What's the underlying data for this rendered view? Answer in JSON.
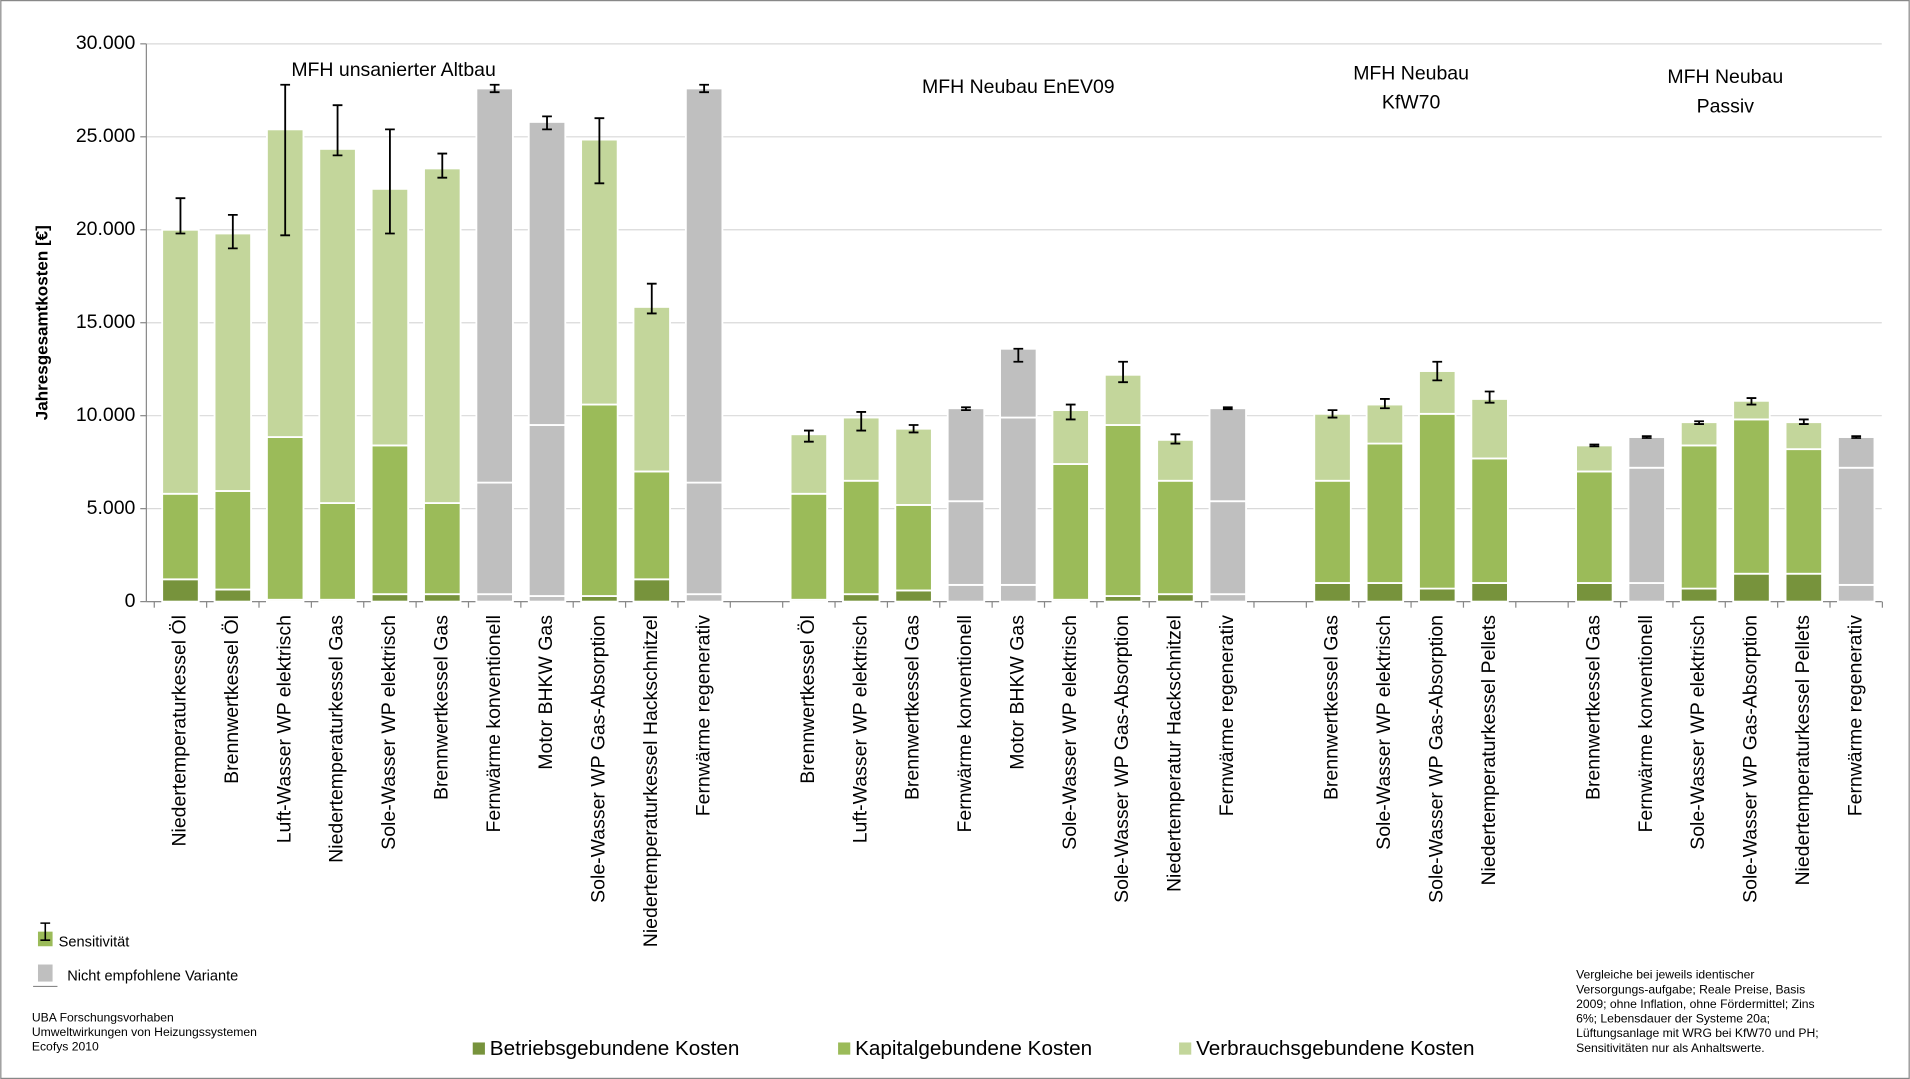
{
  "chart_data": {
    "type": "stacked_bar",
    "ylabel": "Jahresgesamtkosten [€]",
    "ylim": [
      0,
      30000
    ],
    "yticks": [
      0,
      {
        "value": 5000,
        "label": "5.000"
      },
      {
        "value": 10000,
        "label": "10.000"
      },
      {
        "value": 15000,
        "label": "15.000"
      },
      {
        "value": 20000,
        "label": "20.000"
      },
      {
        "value": 25000,
        "label": "25.000"
      },
      {
        "value": 30000,
        "label": "30.000"
      }
    ],
    "grid": true,
    "groups": [
      {
        "label": [
          "MFH unsanierter Altbau"
        ],
        "categories": [
          "Niedertemperaturkessel Öl",
          "Brennwertkessel Öl",
          "Luft-Wasser WP elektrisch",
          "Niedertemperaturkessel Gas",
          "Sole-Wasser WP elektrisch",
          "Brennwertkessel Gas",
          "Fernwärme konventionell",
          "Motor BHKW Gas",
          "Sole-Wasser WP Gas-Absorption",
          "Niedertemperaturkessel Hackschnitzel",
          "Fernwärme regenerativ"
        ]
      },
      {
        "label": [
          "MFH Neubau EnEV09"
        ],
        "categories": [
          "Brennwertkessel Öl",
          "Luft-Wasser WP elektrisch",
          "Brennwertkessel Gas",
          "Fernwärme konventionell",
          "Motor BHKW Gas",
          "Sole-Wasser WP elektrisch",
          "Sole-Wasser WP Gas-Absorption",
          "Niedertemperatur Hackschnitzel",
          "Fernwärme regenerativ"
        ]
      },
      {
        "label": [
          "MFH Neubau",
          "KfW70"
        ],
        "categories": [
          "Brennwertkessel Gas",
          "Sole-Wasser WP elektrisch",
          "Sole-Wasser WP Gas-Absorption",
          "Niedertemperaturkessel Pellets"
        ]
      },
      {
        "label": [
          "MFH Neubau",
          "Passiv"
        ],
        "categories": [
          "Brennwertkessel Gas",
          "Fernwärme konventionell",
          "Sole-Wasser WP elektrisch",
          "Sole-Wasser WP Gas-Absorption",
          "Niedertemperaturkessel Pellets",
          "Fernwärme regenerativ"
        ]
      }
    ],
    "series": [
      {
        "name": "Betriebsgebundene Kosten",
        "color": "#77933c",
        "values": [
          1200,
          650,
          100,
          100,
          400,
          400,
          400,
          300,
          300,
          1200,
          400,
          100,
          400,
          600,
          900,
          900,
          100,
          300,
          400,
          400,
          1000,
          1000,
          700,
          1000,
          1000,
          1000,
          700,
          1500,
          1500,
          900
        ]
      },
      {
        "name": "Kapitalgebundene Kosten",
        "color": "#9bbb59",
        "values": [
          4600,
          5300,
          8750,
          5200,
          8000,
          4900,
          6000,
          9200,
          10300,
          5800,
          6000,
          5700,
          6100,
          4600,
          4500,
          9000,
          7300,
          9200,
          6100,
          5000,
          5500,
          7500,
          9400,
          6700,
          6000,
          6200,
          7700,
          8300,
          6700,
          6300
        ]
      },
      {
        "name": "Verbrauchsgebundene Kosten",
        "color": "#c3d69b",
        "values": [
          14200,
          13850,
          16550,
          19050,
          13800,
          18000,
          21200,
          16300,
          14250,
          8850,
          21200,
          3200,
          3400,
          4100,
          5000,
          3700,
          2900,
          2700,
          2200,
          5000,
          3600,
          2100,
          2300,
          3200,
          1400,
          1650,
          1250,
          1000,
          1450,
          1650
        ]
      }
    ],
    "sensitivity": {
      "name": "Sensitivität",
      "low": [
        19800,
        19000,
        19700,
        24000,
        19800,
        22800,
        27400,
        25400,
        22500,
        15500,
        27400,
        8600,
        9200,
        9100,
        10300,
        12900,
        9800,
        11800,
        8500,
        10350,
        9900,
        10400,
        11900,
        10700,
        8350,
        8800,
        9550,
        10600,
        9550,
        8800
      ],
      "high": [
        21700,
        20800,
        27800,
        26700,
        25400,
        24100,
        27800,
        26100,
        26000,
        17100,
        27800,
        9200,
        10200,
        9500,
        10450,
        13600,
        10600,
        12900,
        9000,
        10450,
        10300,
        10900,
        12900,
        11300,
        8450,
        8900,
        9700,
        10950,
        9800,
        8900
      ]
    },
    "not_recommended": {
      "name": "Nicht empfohlene Variante",
      "color": "#bfbfbf",
      "flags": [
        false,
        false,
        false,
        false,
        false,
        false,
        true,
        true,
        false,
        false,
        true,
        false,
        false,
        false,
        true,
        true,
        false,
        false,
        false,
        true,
        false,
        false,
        false,
        false,
        false,
        true,
        false,
        false,
        false,
        true
      ]
    },
    "source_note": [
      "UBA Forschungsvorhaben",
      "Umweltwirkungen von Heizungssystemen",
      "Ecofys 2010"
    ],
    "method_note": [
      "Vergleiche bei jeweils identischer",
      "Versorgungs-aufgabe; Reale Preise, Basis",
      "2009; ohne Inflation, ohne Fördermittel; Zins",
      "6%; Lebensdauer der Systeme 20a;",
      "Lüftungsanlage mit WRG bei KfW70 und PH;",
      "Sensitivitäten nur als Anhaltswerte."
    ]
  }
}
